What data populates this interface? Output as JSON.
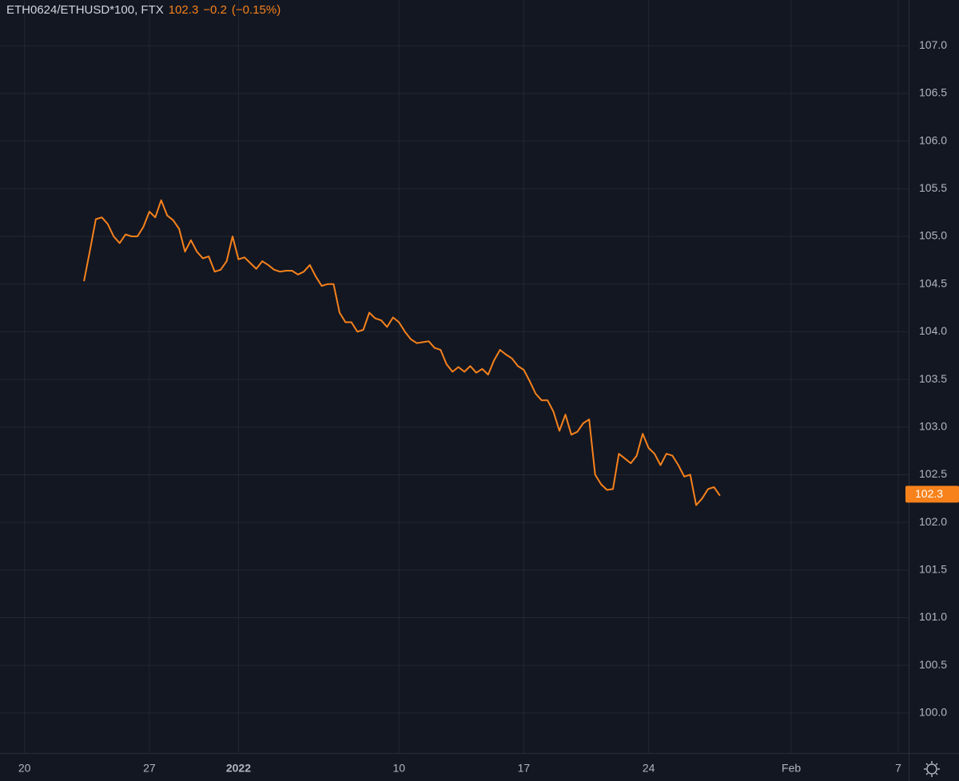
{
  "chart_data": {
    "type": "line",
    "title": "ETH0624/ETHUSD*100, FTX",
    "quote": {
      "value": 102.3,
      "change": -0.2,
      "change_label": "−0.2",
      "change_pct": -0.15,
      "change_pct_label": "(−0.15%)"
    },
    "color": "#f7821b",
    "grid": true,
    "x": [
      "2021-12-23T08:00",
      "2021-12-23T16:00",
      "2021-12-24T00:00",
      "2021-12-24T08:00",
      "2021-12-24T16:00",
      "2021-12-25T00:00",
      "2021-12-25T08:00",
      "2021-12-25T16:00",
      "2021-12-26T00:00",
      "2021-12-26T08:00",
      "2021-12-26T16:00",
      "2021-12-27T00:00",
      "2021-12-27T08:00",
      "2021-12-27T16:00",
      "2021-12-28T00:00",
      "2021-12-28T08:00",
      "2021-12-28T16:00",
      "2021-12-29T00:00",
      "2021-12-29T08:00",
      "2021-12-29T16:00",
      "2021-12-30T00:00",
      "2021-12-30T08:00",
      "2021-12-30T16:00",
      "2021-12-31T00:00",
      "2021-12-31T08:00",
      "2021-12-31T16:00",
      "2022-01-01T00:00",
      "2022-01-01T08:00",
      "2022-01-01T16:00",
      "2022-01-02T00:00",
      "2022-01-02T08:00",
      "2022-01-02T16:00",
      "2022-01-03T00:00",
      "2022-01-03T08:00",
      "2022-01-03T16:00",
      "2022-01-04T00:00",
      "2022-01-04T08:00",
      "2022-01-04T16:00",
      "2022-01-05T00:00",
      "2022-01-05T08:00",
      "2022-01-05T16:00",
      "2022-01-06T00:00",
      "2022-01-06T08:00",
      "2022-01-06T16:00",
      "2022-01-07T00:00",
      "2022-01-07T08:00",
      "2022-01-07T16:00",
      "2022-01-08T00:00",
      "2022-01-08T08:00",
      "2022-01-08T16:00",
      "2022-01-09T00:00",
      "2022-01-09T08:00",
      "2022-01-09T16:00",
      "2022-01-10T00:00",
      "2022-01-10T08:00",
      "2022-01-10T16:00",
      "2022-01-11T00:00",
      "2022-01-11T08:00",
      "2022-01-11T16:00",
      "2022-01-12T00:00",
      "2022-01-12T08:00",
      "2022-01-12T16:00",
      "2022-01-13T00:00",
      "2022-01-13T08:00",
      "2022-01-13T16:00",
      "2022-01-14T00:00",
      "2022-01-14T08:00",
      "2022-01-14T16:00",
      "2022-01-15T00:00",
      "2022-01-15T08:00",
      "2022-01-15T16:00",
      "2022-01-16T00:00",
      "2022-01-16T08:00",
      "2022-01-16T16:00",
      "2022-01-17T00:00",
      "2022-01-17T08:00",
      "2022-01-17T16:00",
      "2022-01-18T00:00",
      "2022-01-18T08:00",
      "2022-01-18T16:00",
      "2022-01-19T00:00",
      "2022-01-19T08:00",
      "2022-01-19T16:00",
      "2022-01-20T00:00",
      "2022-01-20T08:00",
      "2022-01-20T16:00",
      "2022-01-21T00:00",
      "2022-01-21T08:00",
      "2022-01-21T16:00",
      "2022-01-22T00:00",
      "2022-01-22T08:00",
      "2022-01-22T16:00",
      "2022-01-23T00:00",
      "2022-01-23T08:00",
      "2022-01-23T16:00",
      "2022-01-24T00:00",
      "2022-01-24T08:00",
      "2022-01-24T16:00",
      "2022-01-25T00:00",
      "2022-01-25T08:00",
      "2022-01-25T16:00",
      "2022-01-26T00:00",
      "2022-01-26T08:00",
      "2022-01-26T16:00",
      "2022-01-27T00:00",
      "2022-01-27T08:00",
      "2022-01-27T16:00",
      "2022-01-28T00:00"
    ],
    "series": [
      {
        "name": "ETH0624/ETHUSD*100",
        "color": "#f7821b",
        "values": [
          104.53,
          104.85,
          105.18,
          105.2,
          105.13,
          105.0,
          104.93,
          105.02,
          105.0,
          105.0,
          105.1,
          105.26,
          105.2,
          105.38,
          105.22,
          105.17,
          105.08,
          104.84,
          104.96,
          104.84,
          104.77,
          104.79,
          104.63,
          104.65,
          104.74,
          105.0,
          104.76,
          104.78,
          104.72,
          104.66,
          104.74,
          104.7,
          104.65,
          104.63,
          104.64,
          104.64,
          104.6,
          104.63,
          104.7,
          104.58,
          104.48,
          104.5,
          104.5,
          104.2,
          104.1,
          104.1,
          104.0,
          104.02,
          104.2,
          104.14,
          104.12,
          104.05,
          104.15,
          104.1,
          104.0,
          103.92,
          103.88,
          103.89,
          103.9,
          103.83,
          103.81,
          103.66,
          103.58,
          103.63,
          103.58,
          103.64,
          103.57,
          103.61,
          103.55,
          103.7,
          103.81,
          103.76,
          103.72,
          103.64,
          103.6,
          103.48,
          103.35,
          103.28,
          103.28,
          103.16,
          102.96,
          103.13,
          102.92,
          102.95,
          103.04,
          103.08,
          102.5,
          102.4,
          102.34,
          102.35,
          102.72,
          102.67,
          102.62,
          102.7,
          102.93,
          102.78,
          102.72,
          102.6,
          102.72,
          102.7,
          102.6,
          102.48,
          102.5,
          102.18,
          102.25,
          102.35,
          102.37,
          102.28
        ]
      }
    ],
    "xlim": [
      "2021-12-18T15:00",
      "2022-02-07T14:00"
    ],
    "xticks": [
      {
        "value": "2021-12-20",
        "label": "20"
      },
      {
        "value": "2021-12-27",
        "label": "27"
      },
      {
        "value": "2022-01-01",
        "label": "2022"
      },
      {
        "value": "2022-01-10",
        "label": "10"
      },
      {
        "value": "2022-01-17",
        "label": "17"
      },
      {
        "value": "2022-01-24",
        "label": "24"
      },
      {
        "value": "2022-02-01",
        "label": "Feb"
      },
      {
        "value": "2022-02-07",
        "label": "7"
      }
    ],
    "ylim": [
      99.58,
      107.48
    ],
    "yticks": [
      {
        "value": 100,
        "label": "100.0"
      },
      {
        "value": 100.5,
        "label": "100.5"
      },
      {
        "value": 101,
        "label": "101.0"
      },
      {
        "value": 101.5,
        "label": "101.5"
      },
      {
        "value": 102,
        "label": "102.0"
      },
      {
        "value": 102.5,
        "label": "102.5"
      },
      {
        "value": 103,
        "label": "103.0"
      },
      {
        "value": 103.5,
        "label": "103.5"
      },
      {
        "value": 104,
        "label": "104.0"
      },
      {
        "value": 104.5,
        "label": "104.5"
      },
      {
        "value": 105,
        "label": "105.0"
      },
      {
        "value": 105.5,
        "label": "105.5"
      },
      {
        "value": 106,
        "label": "106.0"
      },
      {
        "value": 106.5,
        "label": "106.5"
      },
      {
        "value": 107,
        "label": "107.0"
      }
    ]
  }
}
